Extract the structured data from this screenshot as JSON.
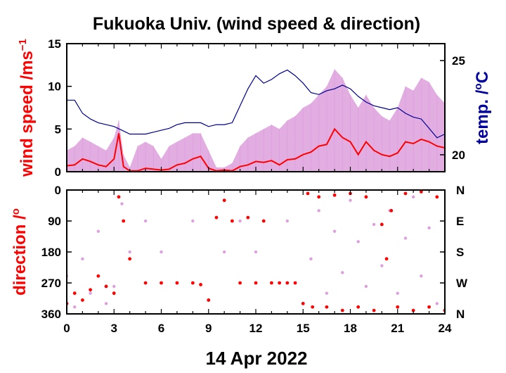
{
  "chart_data": [
    {
      "type": "line",
      "title": "Fukuoka Univ. (wind speed & direction)",
      "xlabel": "14 Apr 2022",
      "ylabel": "wind speed /ms",
      "ylabel_superscript": "−1",
      "y2label": "temp. /",
      "y2label_superscript": "o",
      "y2label_unit": "C",
      "xlim": [
        0,
        24
      ],
      "ylim": [
        0,
        15
      ],
      "y2lim": [
        19.1,
        25.9
      ],
      "x_ticks": [
        0,
        3,
        6,
        9,
        12,
        15,
        18,
        21,
        24
      ],
      "x_tick_labels": [
        "0",
        "3",
        "6",
        "9",
        "12",
        "15",
        "18",
        "21",
        "24"
      ],
      "y_ticks": [
        0,
        5,
        10,
        15
      ],
      "y_tick_labels": [
        "0",
        "5",
        "10",
        "15"
      ],
      "y2_ticks": [
        20,
        25
      ],
      "y2_tick_labels": [
        "20",
        "25"
      ],
      "colors": {
        "wind_mean": "#ff0000",
        "wind_gust": "#dda0dd",
        "temperature": "#00008b"
      },
      "series": [
        {
          "axis": "left",
          "x": [
            0,
            0.5,
            1,
            1.5,
            2,
            2.5,
            3,
            3.3,
            3.6,
            4,
            4.5,
            5,
            5.5,
            6,
            6.5,
            7,
            7.5,
            8,
            8.5,
            9,
            9.5,
            10,
            10.5,
            11,
            11.5,
            12,
            12.5,
            13,
            13.5,
            14,
            14.5,
            15,
            15.5,
            16,
            16.5,
            17,
            17.5,
            18,
            18.5,
            19,
            19.5,
            20,
            20.5,
            21,
            21.5,
            22,
            22.5,
            23,
            23.5,
            24
          ],
          "values": [
            0.7,
            0.8,
            1.5,
            1.2,
            0.8,
            0.6,
            1.5,
            4.5,
            0.6,
            0.1,
            0.1,
            0.4,
            0.3,
            0.2,
            0.3,
            0.8,
            1.0,
            1.5,
            1.8,
            0.4,
            0.1,
            0.2,
            0.1,
            0.6,
            0.8,
            1.2,
            1.1,
            1.3,
            0.8,
            1.4,
            1.5,
            2.0,
            2.3,
            3.0,
            3.2,
            5.0,
            4.0,
            3.5,
            2.0,
            3.5,
            2.5,
            2.0,
            1.8,
            2.2,
            3.5,
            3.3,
            3.8,
            3.5,
            3.0,
            2.8
          ]
        },
        {
          "axis": "left",
          "x": [
            0,
            0.5,
            1,
            1.5,
            2,
            2.5,
            3,
            3.3,
            3.6,
            4,
            4.5,
            5,
            5.5,
            6,
            6.5,
            7,
            7.5,
            8,
            8.5,
            9,
            9.5,
            10,
            10.5,
            11,
            11.5,
            12,
            12.5,
            13,
            13.5,
            14,
            14.5,
            15,
            15.5,
            16,
            16.5,
            17,
            17.5,
            18,
            18.5,
            19,
            19.5,
            20,
            20.5,
            21,
            21.5,
            22,
            22.5,
            23,
            23.5,
            24
          ],
          "values": [
            2.5,
            3.0,
            4.0,
            3.5,
            3.0,
            2.5,
            4.0,
            6.0,
            2.0,
            0.5,
            3.0,
            3.5,
            3.0,
            1.5,
            3.0,
            3.5,
            4.0,
            4.5,
            4.5,
            2.5,
            0.5,
            0.5,
            1.0,
            3.0,
            4.0,
            4.5,
            5.0,
            5.5,
            5.0,
            6.0,
            6.5,
            7.5,
            8.0,
            9.0,
            10.0,
            12.0,
            11.0,
            9.0,
            7.5,
            9.0,
            7.5,
            6.5,
            6.0,
            7.5,
            10.0,
            9.5,
            11.0,
            10.5,
            9.0,
            8.0
          ]
        },
        {
          "axis": "right",
          "x": [
            0,
            0.5,
            1,
            1.5,
            2,
            2.5,
            3,
            3.5,
            4,
            4.5,
            5,
            5.5,
            6,
            6.5,
            7,
            7.5,
            8,
            8.5,
            9,
            9.5,
            10,
            10.5,
            11,
            11.5,
            12,
            12.5,
            13,
            13.5,
            14,
            14.5,
            15,
            15.5,
            16,
            16.5,
            17,
            17.5,
            18,
            18.5,
            19,
            19.5,
            20,
            20.5,
            21,
            21.5,
            22,
            22.5,
            23,
            23.5,
            24
          ],
          "values": [
            22.9,
            22.9,
            22.2,
            21.9,
            21.7,
            21.6,
            21.5,
            21.3,
            21.1,
            21.1,
            21.1,
            21.2,
            21.3,
            21.4,
            21.6,
            21.7,
            21.7,
            21.7,
            21.5,
            21.6,
            21.6,
            21.7,
            22.6,
            23.5,
            24.2,
            23.8,
            24.0,
            24.3,
            24.5,
            24.2,
            23.8,
            23.3,
            23.2,
            23.4,
            23.5,
            23.7,
            23.5,
            23.1,
            22.8,
            22.6,
            22.5,
            22.4,
            22.5,
            22.2,
            22.0,
            21.9,
            21.4,
            20.9,
            21.1
          ]
        }
      ]
    },
    {
      "type": "scatter",
      "ylabel": "direction /",
      "ylabel_superscript": "o",
      "xlabel": "14 Apr 2022",
      "xlim": [
        0,
        24
      ],
      "ylim": [
        360,
        0
      ],
      "y_ticks": [
        0,
        90,
        180,
        270,
        360
      ],
      "y_tick_labels": [
        "0",
        "90",
        "180",
        "270",
        "360"
      ],
      "y2_tick_labels": [
        "N",
        "E",
        "S",
        "W",
        "N"
      ],
      "x_ticks": [
        0,
        3,
        6,
        9,
        12,
        15,
        18,
        21,
        24
      ],
      "x_tick_labels": [
        "0",
        "3",
        "6",
        "9",
        "12",
        "15",
        "18",
        "21",
        "24"
      ],
      "colors": {
        "mean_direction": "#ff0000",
        "instant_direction": "#dda0dd"
      },
      "series": [
        {
          "x": [
            0,
            0.5,
            1,
            1.5,
            2,
            2.5,
            3,
            3.3,
            3.6,
            4,
            5,
            6,
            7,
            8,
            8.5,
            9,
            9.5,
            10,
            10.5,
            11,
            11.5,
            12,
            12.5,
            13,
            13.5,
            14,
            14.5,
            15,
            15.3,
            15.6,
            16,
            16.5,
            17,
            17.5,
            18,
            18.5,
            19,
            19.5,
            20,
            20.3,
            20.6,
            21,
            21.5,
            22,
            22.5,
            23,
            23.5,
            24
          ],
          "values": [
            330,
            300,
            320,
            290,
            250,
            280,
            300,
            20,
            90,
            200,
            270,
            270,
            270,
            270,
            275,
            320,
            80,
            30,
            90,
            270,
            80,
            270,
            90,
            270,
            270,
            270,
            270,
            330,
            10,
            340,
            20,
            340,
            15,
            350,
            10,
            340,
            20,
            350,
            100,
            200,
            60,
            340,
            10,
            350,
            5,
            340,
            20,
            350
          ]
        },
        {
          "x": [
            0,
            0.5,
            1,
            1.5,
            2,
            2.5,
            3,
            3.5,
            4,
            5,
            6,
            7,
            8,
            9,
            10,
            11,
            12,
            13,
            14,
            15,
            15.5,
            16,
            16.5,
            17,
            17.5,
            18,
            18.5,
            19,
            19.5,
            20,
            20.5,
            21,
            21.5,
            22,
            22.5,
            23,
            23.5,
            24
          ],
          "values": [
            250,
            340,
            200,
            300,
            120,
            330,
            280,
            40,
            180,
            90,
            180,
            270,
            90,
            320,
            180,
            90,
            180,
            270,
            90,
            360,
            200,
            60,
            300,
            120,
            240,
            30,
            150,
            280,
            100,
            220,
            60,
            300,
            140,
            20,
            250,
            110,
            330,
            180
          ]
        }
      ]
    }
  ]
}
